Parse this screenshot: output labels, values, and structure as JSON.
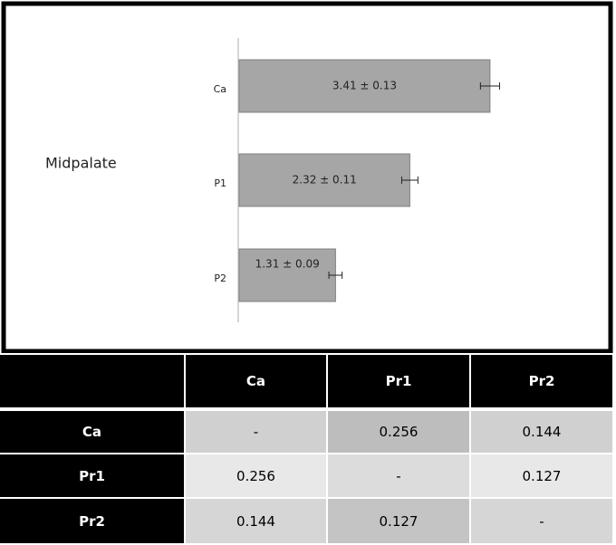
{
  "chart_data": {
    "type": "bar",
    "orientation": "horizontal",
    "label": "Midpalate",
    "categories": [
      "Ca",
      "P1",
      "P2"
    ],
    "values": [
      3.41,
      2.32,
      1.31
    ],
    "errors": [
      0.13,
      0.11,
      0.09
    ],
    "value_labels": [
      "3.41 ± 0.13",
      "2.32 ± 0.11",
      "1.31 ± 0.09"
    ],
    "color": "#a6a6a6"
  },
  "table": {
    "columns": [
      "Ca",
      "Pr1",
      "Pr2"
    ],
    "rows": [
      {
        "label": "Ca",
        "cells": [
          "-",
          0.256,
          0.144
        ]
      },
      {
        "label": "Pr1",
        "cells": [
          0.256,
          "-",
          0.127
        ]
      },
      {
        "label": "Pr2",
        "cells": [
          0.144,
          0.127,
          "-"
        ]
      }
    ]
  }
}
